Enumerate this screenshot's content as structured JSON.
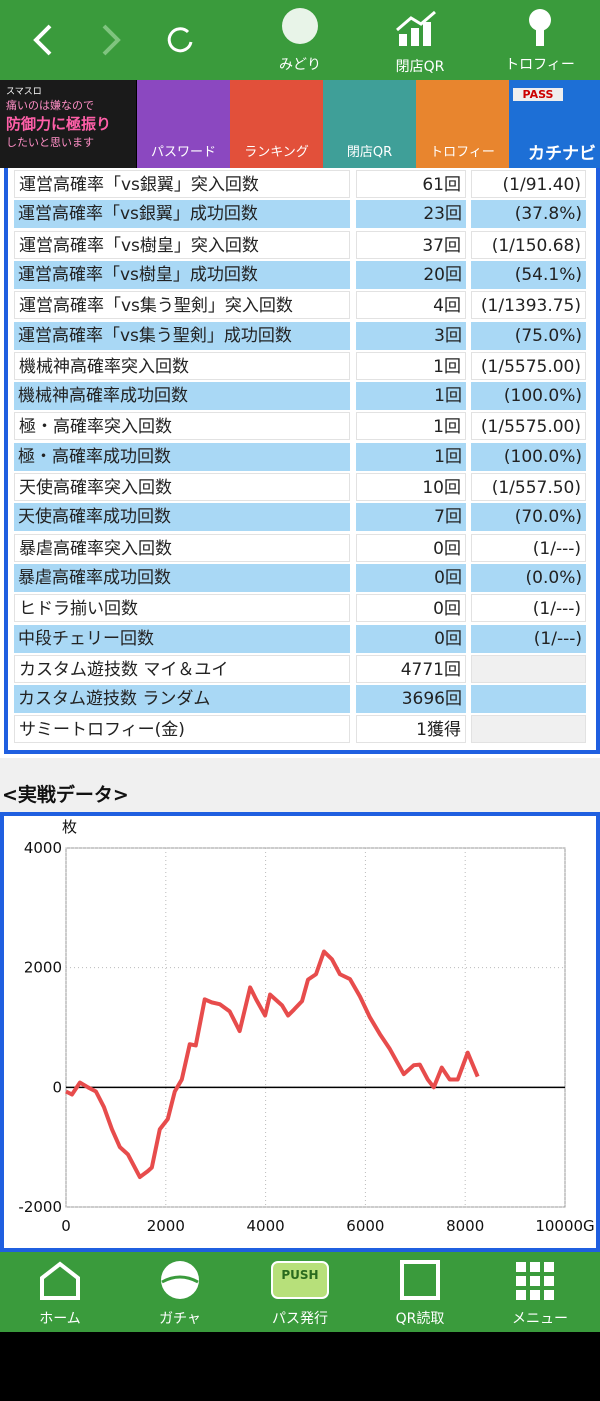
{
  "nav": {
    "items": [
      "みどり",
      "閉店QR",
      "トロフィー"
    ]
  },
  "banner": {
    "logo": [
      "スマスロ",
      "痛いのは嫌なので",
      "防御力に極振り",
      "したいと思います"
    ],
    "tabs": [
      "パスワード",
      "ランキング",
      "閉店QR",
      "トロフィー"
    ],
    "brand": [
      "PASS",
      "カチナビ"
    ]
  },
  "table": {
    "rows": [
      {
        "label": "運営高確率「vs銀翼」突入回数",
        "count": "61回",
        "rate": "(1/91.40)"
      },
      {
        "label": "運営高確率「vs銀翼」成功回数",
        "count": "23回",
        "rate": "(37.8%)"
      },
      {
        "label": "運営高確率「vs樹皇」突入回数",
        "count": "37回",
        "rate": "(1/150.68)"
      },
      {
        "label": "運営高確率「vs樹皇」成功回数",
        "count": "20回",
        "rate": "(54.1%)"
      },
      {
        "label": "運営高確率「vs集う聖剣」突入回数",
        "count": "4回",
        "rate": "(1/1393.75)"
      },
      {
        "label": "運営高確率「vs集う聖剣」成功回数",
        "count": "3回",
        "rate": "(75.0%)"
      },
      {
        "label": "機械神高確率突入回数",
        "count": "1回",
        "rate": "(1/5575.00)"
      },
      {
        "label": "機械神高確率成功回数",
        "count": "1回",
        "rate": "(100.0%)"
      },
      {
        "label": "極・高確率突入回数",
        "count": "1回",
        "rate": "(1/5575.00)"
      },
      {
        "label": "極・高確率成功回数",
        "count": "1回",
        "rate": "(100.0%)"
      },
      {
        "label": "天使高確率突入回数",
        "count": "10回",
        "rate": "(1/557.50)"
      },
      {
        "label": "天使高確率成功回数",
        "count": "7回",
        "rate": "(70.0%)"
      },
      {
        "label": "暴虐高確率突入回数",
        "count": "0回",
        "rate": "(1/---)"
      },
      {
        "label": "暴虐高確率成功回数",
        "count": "0回",
        "rate": "(0.0%)"
      },
      {
        "label": "ヒドラ揃い回数",
        "count": "0回",
        "rate": "(1/---)"
      },
      {
        "label": "中段チェリー回数",
        "count": "0回",
        "rate": "(1/---)"
      },
      {
        "label": "カスタム遊技数 マイ＆ユイ",
        "count": "4771回"
      },
      {
        "label": "カスタム遊技数 ランダム",
        "count": "3696回"
      },
      {
        "label": "サミートロフィー(金)",
        "count": "1獲得"
      }
    ]
  },
  "section_title": "<実戦データ>",
  "chart_data": {
    "type": "line",
    "y_label": "枚",
    "color": "#e74c4c",
    "grid": true,
    "x": [
      0,
      120,
      280,
      440,
      600,
      760,
      920,
      1080,
      1240,
      1480,
      1640,
      1720,
      1880,
      2040,
      2180,
      2320,
      2480,
      2600,
      2780,
      2920,
      3080,
      3280,
      3480,
      3690,
      3810,
      3990,
      4090,
      4330,
      4450,
      4570,
      4730,
      4850,
      5010,
      5170,
      5330,
      5490,
      5690,
      5890,
      6090,
      6290,
      6490,
      6770,
      6970,
      7090,
      7250,
      7370,
      7530,
      7690,
      7850,
      8050,
      8250
    ],
    "values": [
      -70,
      -120,
      80,
      0,
      -70,
      -330,
      -700,
      -1000,
      -1120,
      -1500,
      -1400,
      -1340,
      -700,
      -530,
      -70,
      130,
      720,
      700,
      1470,
      1420,
      1390,
      1270,
      940,
      1670,
      1470,
      1200,
      1550,
      1370,
      1200,
      1300,
      1440,
      1800,
      1890,
      2270,
      2140,
      1890,
      1810,
      1520,
      1170,
      890,
      640,
      220,
      370,
      380,
      130,
      0,
      330,
      130,
      130,
      580,
      180
    ],
    "xlim": [
      0,
      10000
    ],
    "xticks": [
      0,
      2000,
      4000,
      6000,
      8000,
      {
        "value": 10000,
        "label": "10000G"
      }
    ],
    "ylim": [
      -2000,
      4000
    ],
    "yticks": [
      -2000,
      0,
      2000,
      4000
    ]
  },
  "bottom_nav": {
    "items": [
      "ホーム",
      "ガチャ",
      "パス発行",
      "QR読取",
      "メニュー"
    ],
    "push": "PUSH"
  }
}
